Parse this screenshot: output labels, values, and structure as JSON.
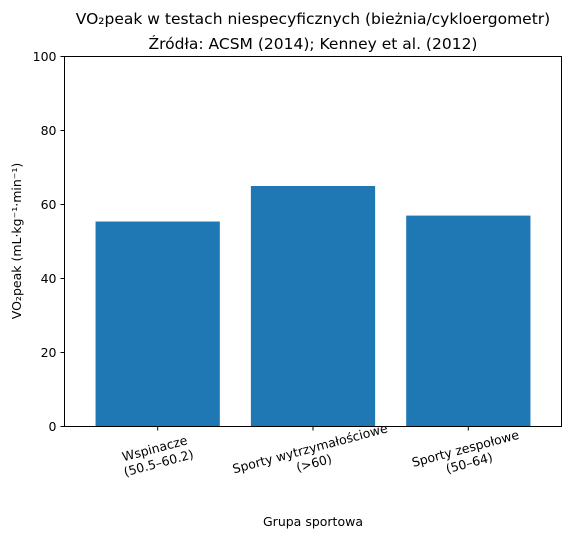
{
  "chart_data": {
    "type": "bar",
    "title_line1": "VO₂peak w testach niespecyficznych (bieżnia/cykloergometr)",
    "title_line2": "Źródła: ACSM (2014); Kenney et al. (2012)",
    "xlabel": "Grupa sportowa",
    "ylabel": "VO₂peak (mL·kg⁻¹·min⁻¹)",
    "ylim": [
      0,
      100
    ],
    "yticks": [
      0,
      20,
      40,
      60,
      80,
      100
    ],
    "grid": false,
    "bar_color": "#1f77b4",
    "categories": [
      {
        "line1": "Wspinacze",
        "line2": "(50.5–60.2)"
      },
      {
        "line1": "Sporty wytrzymałościowe",
        "line2": "(>60)"
      },
      {
        "line1": "Sporty zespołowe",
        "line2": "(50–64)"
      }
    ],
    "values": [
      55.4,
      65,
      57
    ]
  }
}
